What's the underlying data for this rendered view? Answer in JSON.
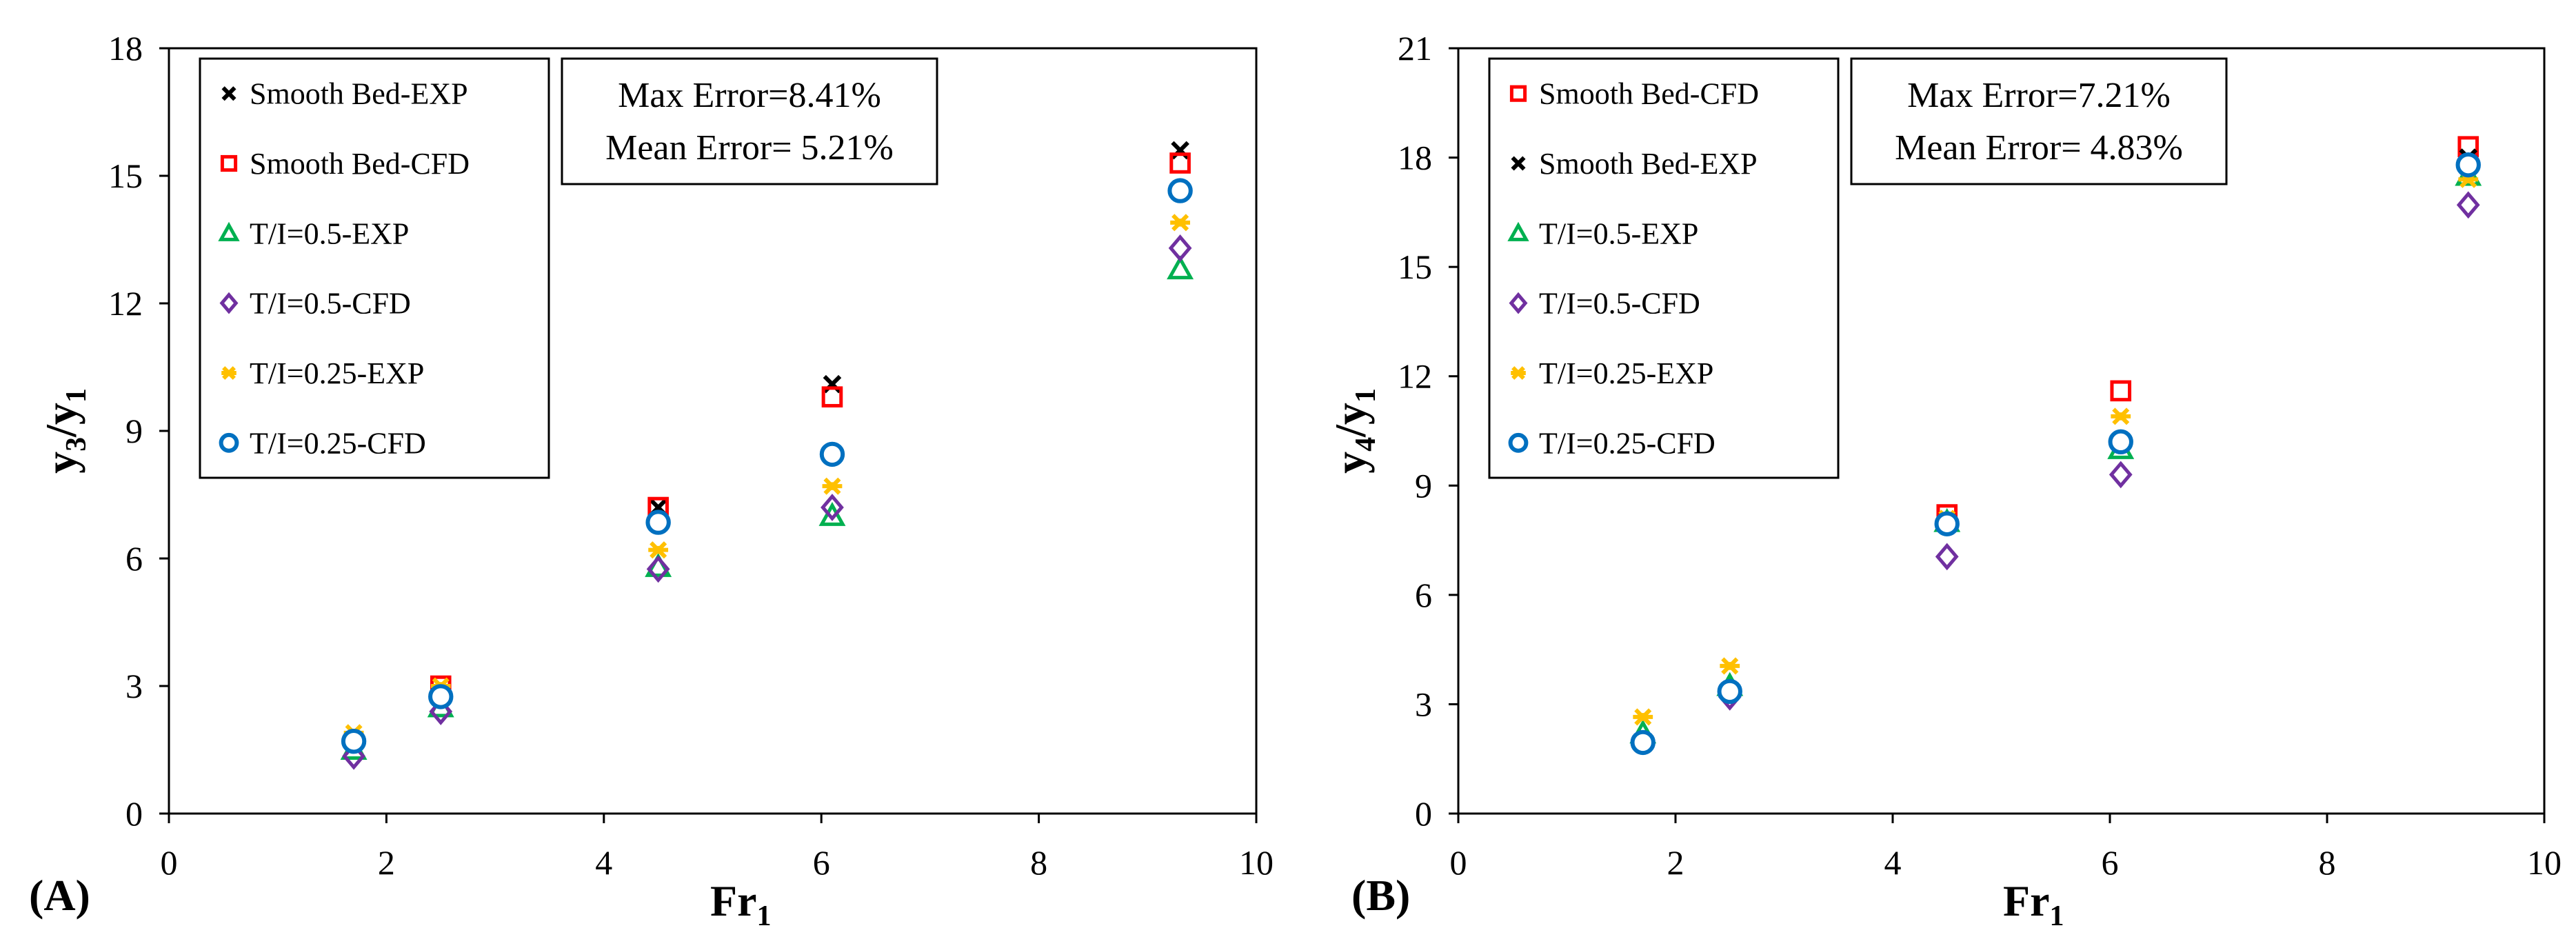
{
  "colors": {
    "smooth_exp": "#000000",
    "smooth_cfd": "#ff0000",
    "ti05_exp": "#00b050",
    "ti05_cfd": "#7030a0",
    "ti025_exp": "#ffc000",
    "ti025_cfd": "#0070c0"
  },
  "chart_data": [
    {
      "type": "scatter",
      "panel_label": "(A)",
      "xlabel": "Fr",
      "xlabel_sub": "1",
      "ylabel": "y3/y1",
      "ylabel_parts": [
        "y",
        "3",
        "/y",
        "1"
      ],
      "xlim": [
        0,
        10
      ],
      "ylim": [
        0,
        18
      ],
      "xticks": [
        0,
        2,
        4,
        6,
        8,
        10
      ],
      "yticks": [
        0,
        3,
        6,
        9,
        12,
        15,
        18
      ],
      "grid": false,
      "legend_position": "top-left",
      "error_text": [
        "Max Error=8.41%",
        "Mean Error= 5.21%"
      ],
      "series": [
        {
          "name": "Smooth Bed-EXP",
          "marker": "x",
          "color": "#000000",
          "x": [
            4.5,
            6.1,
            9.3
          ],
          "y": [
            7.2,
            10.1,
            15.6
          ]
        },
        {
          "name": "Smooth Bed-CFD",
          "marker": "square",
          "color": "#ff0000",
          "x": [
            2.5,
            4.5,
            6.1,
            9.3
          ],
          "y": [
            3.0,
            7.2,
            9.8,
            15.3
          ]
        },
        {
          "name": "T/I=0.5-EXP",
          "marker": "triangle",
          "color": "#00b050",
          "x": [
            1.7,
            2.5,
            4.5,
            6.1,
            9.3
          ],
          "y": [
            1.5,
            2.5,
            5.8,
            7.0,
            12.8
          ]
        },
        {
          "name": "T/I=0.5-CFD",
          "marker": "diamond",
          "color": "#7030a0",
          "x": [
            1.7,
            2.5,
            4.5,
            6.1,
            9.3
          ],
          "y": [
            1.35,
            2.4,
            5.75,
            7.2,
            13.3
          ]
        },
        {
          "name": "T/I=0.25-EXP",
          "marker": "asterisk",
          "color": "#ffc000",
          "x": [
            1.7,
            2.5,
            4.5,
            6.1,
            9.3
          ],
          "y": [
            1.9,
            3.0,
            6.2,
            7.7,
            13.9
          ]
        },
        {
          "name": "T/I=0.25-CFD",
          "marker": "circle",
          "color": "#0070c0",
          "x": [
            1.7,
            2.5,
            4.5,
            6.1,
            9.3
          ],
          "y": [
            1.7,
            2.75,
            6.85,
            8.45,
            14.65
          ]
        }
      ]
    },
    {
      "type": "scatter",
      "panel_label": "(B)",
      "xlabel": "Fr",
      "xlabel_sub": "1",
      "ylabel": "y4/y1",
      "ylabel_parts": [
        "y",
        "4",
        "/y",
        "1"
      ],
      "xlim": [
        0,
        10
      ],
      "ylim": [
        0,
        21
      ],
      "xticks": [
        0,
        2,
        4,
        6,
        8,
        10
      ],
      "yticks": [
        0,
        3,
        6,
        9,
        12,
        15,
        18,
        21
      ],
      "grid": false,
      "legend_position": "top-left",
      "error_text": [
        "Max Error=7.21%",
        "Mean Error= 4.83%"
      ],
      "series": [
        {
          "name": "Smooth Bed-CFD",
          "marker": "square",
          "color": "#ff0000",
          "x": [
            4.5,
            6.1,
            9.3
          ],
          "y": [
            8.2,
            11.6,
            18.3
          ]
        },
        {
          "name": "Smooth Bed-EXP",
          "marker": "x",
          "color": "#000000",
          "x": [
            9.3
          ],
          "y": [
            18.0
          ]
        },
        {
          "name": "T/I=0.5-EXP",
          "marker": "triangle",
          "color": "#00b050",
          "x": [
            1.7,
            2.5,
            4.5,
            6.1,
            9.3
          ],
          "y": [
            2.2,
            3.5,
            8.0,
            10.0,
            17.5
          ]
        },
        {
          "name": "T/I=0.5-CFD",
          "marker": "diamond",
          "color": "#7030a0",
          "x": [
            2.5,
            4.5,
            6.1,
            9.3
          ],
          "y": [
            3.2,
            7.05,
            9.3,
            16.7
          ]
        },
        {
          "name": "T/I=0.25-EXP",
          "marker": "asterisk",
          "color": "#ffc000",
          "x": [
            1.7,
            2.5,
            4.5,
            6.1,
            9.3
          ],
          "y": [
            2.65,
            4.05,
            8.1,
            10.9,
            17.4
          ]
        },
        {
          "name": "T/I=0.25-CFD",
          "marker": "circle",
          "color": "#0070c0",
          "x": [
            1.7,
            2.5,
            4.5,
            6.1,
            9.3
          ],
          "y": [
            1.95,
            3.35,
            7.95,
            10.2,
            17.8
          ]
        }
      ]
    }
  ]
}
